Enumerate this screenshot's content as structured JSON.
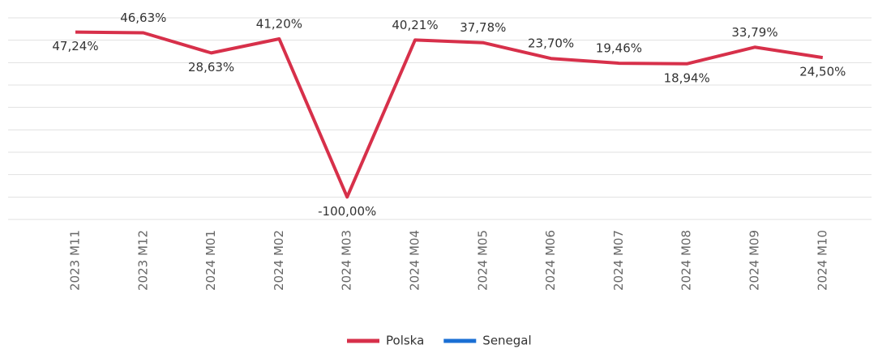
{
  "chart_data": {
    "type": "line",
    "categories": [
      "2023 M11",
      "2023 M12",
      "2024 M01",
      "2024 M02",
      "2024 M03",
      "2024 M04",
      "2024 M05",
      "2024 M06",
      "2024 M07",
      "2024 M08",
      "2024 M09",
      "2024 M10"
    ],
    "series": [
      {
        "name": "Polska",
        "color": "#d7304a",
        "values": [
          47.24,
          46.63,
          28.63,
          41.2,
          -100,
          40.21,
          37.78,
          23.7,
          19.46,
          18.94,
          33.79,
          24.5
        ],
        "value_labels": [
          "47,24%",
          "46,63%",
          "28,63%",
          "41,20%",
          "-100,00%",
          "40,21%",
          "37,78%",
          "23,70%",
          "19,46%",
          "18,94%",
          "33,79%",
          "24,50%"
        ]
      },
      {
        "name": "Senegal",
        "color": "#1a6fd4",
        "values": [
          null,
          null,
          null,
          null,
          null,
          null,
          null,
          null,
          null,
          null,
          null,
          null
        ]
      }
    ],
    "ylim": [
      -120,
      60
    ],
    "yticks": [
      -120,
      -100,
      -80,
      -60,
      -40,
      -20,
      0,
      20,
      40,
      60
    ],
    "ytick_labels": false,
    "grid": true,
    "legend": "bottom"
  }
}
